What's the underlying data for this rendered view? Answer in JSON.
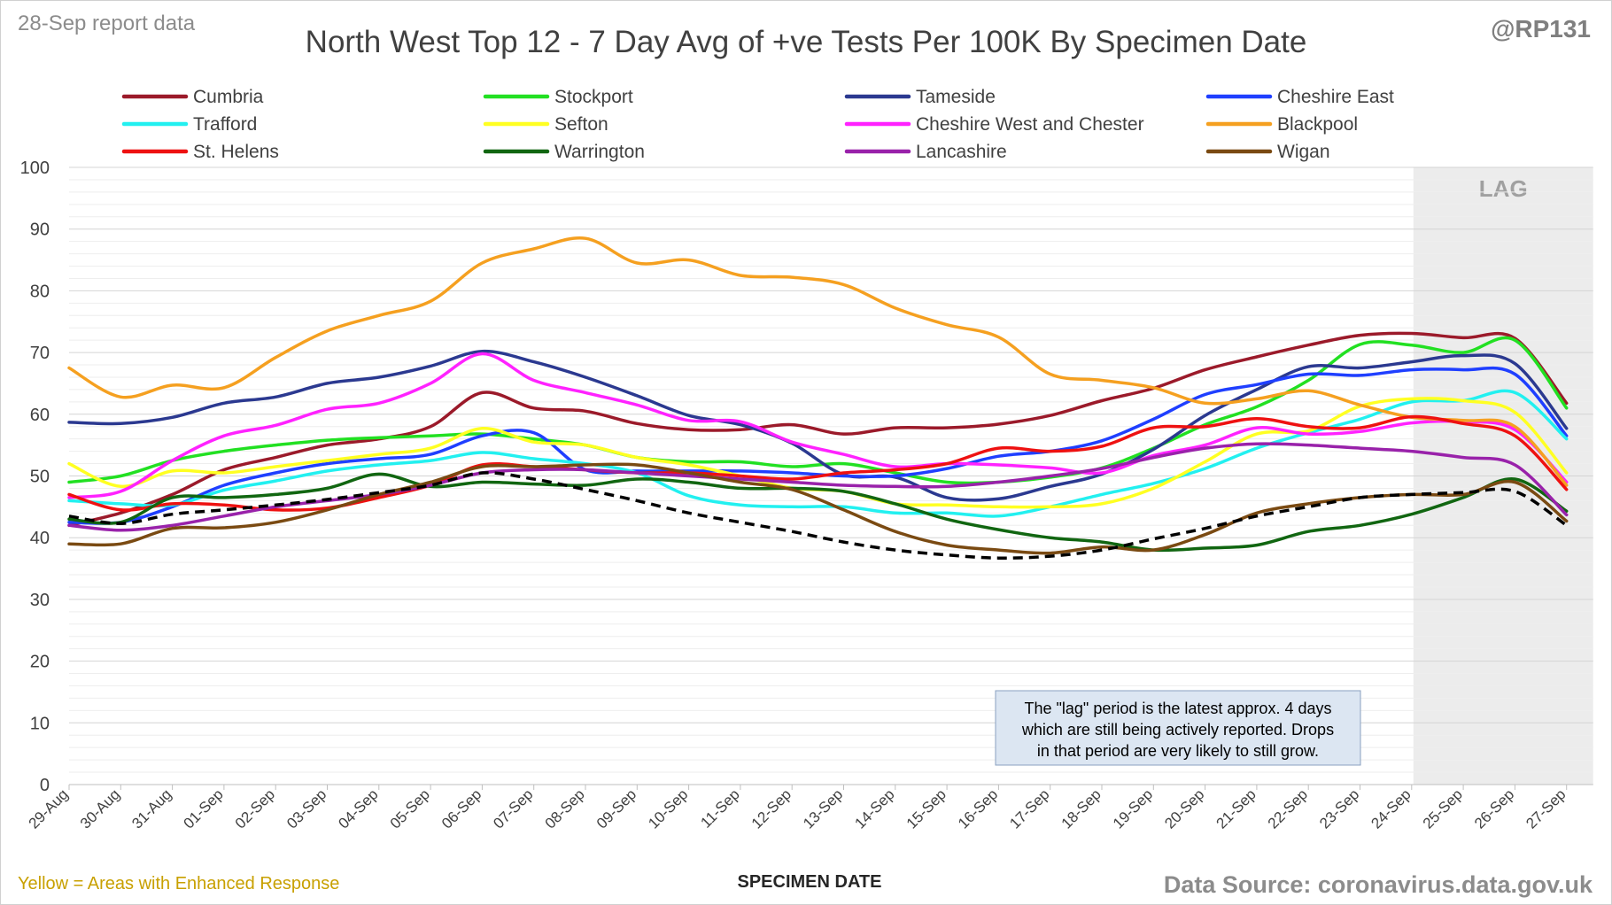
{
  "header": {
    "report_label": "28-Sep report data",
    "handle": "@RP131",
    "footer_left": "Yellow = Areas with Enhanced Response",
    "source": "Data Source: coronavirus.data.gov.uk"
  },
  "annotation": {
    "lag_label": "LAG",
    "note_lines": [
      "The \"lag\" period is the latest approx. 4 days",
      "which are still being actively reported.  Drops",
      "in that period are very likely to still grow."
    ]
  },
  "chart_data": {
    "type": "line",
    "title": "North West Top 12 - 7 Day Avg of +ve Tests Per 100K By Specimen Date",
    "xlabel": "SPECIMEN DATE",
    "ylabel": "",
    "ylim": [
      0,
      100
    ],
    "yticks": [
      0,
      10,
      20,
      30,
      40,
      50,
      60,
      70,
      80,
      90,
      100
    ],
    "grid": true,
    "legend": "top",
    "lag_region": [
      "24-Sep",
      "27-Sep"
    ],
    "categories": [
      "29-Aug",
      "30-Aug",
      "31-Aug",
      "01-Sep",
      "02-Sep",
      "03-Sep",
      "04-Sep",
      "05-Sep",
      "06-Sep",
      "07-Sep",
      "08-Sep",
      "09-Sep",
      "10-Sep",
      "11-Sep",
      "12-Sep",
      "13-Sep",
      "14-Sep",
      "15-Sep",
      "16-Sep",
      "17-Sep",
      "18-Sep",
      "19-Sep",
      "20-Sep",
      "21-Sep",
      "22-Sep",
      "23-Sep",
      "24-Sep",
      "25-Sep",
      "26-Sep",
      "27-Sep"
    ],
    "series": [
      {
        "name": "Cumbria",
        "color": "#9b1a2a",
        "values": [
          42,
          44,
          47,
          51,
          53,
          55,
          56,
          58,
          63.5,
          61,
          60.5,
          58.5,
          57.5,
          57.5,
          58.3,
          56.8,
          57.8,
          57.8,
          58.4,
          59.8,
          62.2,
          64.2,
          67.2,
          69.3,
          71.2,
          72.8,
          73.1,
          72.4,
          72.3,
          61.8
        ]
      },
      {
        "name": "Stockport",
        "color": "#22e022",
        "values": [
          49,
          50,
          52.5,
          54,
          55,
          55.8,
          56.2,
          56.5,
          56.8,
          56,
          55,
          53,
          52.3,
          52.3,
          51.5,
          52,
          50.5,
          49,
          49,
          49.8,
          51.3,
          54.5,
          58.3,
          61.2,
          65.5,
          71.3,
          71.2,
          70,
          72,
          61
        ]
      },
      {
        "name": "Tameside",
        "color": "#2b3990",
        "values": [
          58.7,
          58.5,
          59.5,
          61.8,
          62.8,
          65,
          66,
          67.8,
          70.2,
          68.5,
          66,
          63,
          59.8,
          58.3,
          55.3,
          50.2,
          49.8,
          46.5,
          46.3,
          48.3,
          50.3,
          54.3,
          59.8,
          64,
          67.7,
          67.5,
          68.5,
          69.5,
          68.2,
          57.7
        ]
      },
      {
        "name": "Cheshire East",
        "color": "#1f3fff",
        "values": [
          42.5,
          42.5,
          45,
          48.5,
          50.5,
          52,
          52.8,
          53.5,
          56.5,
          57,
          51,
          50.8,
          50.8,
          50.8,
          50.5,
          50,
          50,
          51.2,
          53.2,
          54,
          55.7,
          59.2,
          63.2,
          64.8,
          66.5,
          66.3,
          67.2,
          67.2,
          66.5,
          56.5
        ]
      },
      {
        "name": "Trafford",
        "color": "#22f0f0",
        "values": [
          46,
          45.5,
          45.3,
          47.7,
          49.2,
          50.8,
          51.8,
          52.5,
          53.8,
          52.8,
          52,
          50.5,
          46.8,
          45.3,
          45,
          45,
          44,
          44,
          43.5,
          45,
          47,
          48.8,
          51.2,
          54.5,
          57,
          59.2,
          62,
          62.2,
          63.5,
          56
        ]
      },
      {
        "name": "Sefton",
        "color": "#ffff22",
        "values": [
          52,
          48.3,
          50.8,
          50.5,
          51.5,
          52.5,
          53.5,
          54.5,
          57.7,
          55.5,
          55,
          53,
          51.8,
          50,
          48,
          47.5,
          45.5,
          45.3,
          45,
          45,
          45.5,
          48,
          52.3,
          56.8,
          57.3,
          61.3,
          62.5,
          62.2,
          60.3,
          50.5
        ]
      },
      {
        "name": "Cheshire West and Chester",
        "color": "#ff22ff",
        "values": [
          46.5,
          47.5,
          52.5,
          56.5,
          58.2,
          60.8,
          61.8,
          65,
          69.8,
          65.5,
          63.5,
          61.5,
          59,
          58.8,
          55.5,
          53.5,
          51.5,
          52,
          51.8,
          51.3,
          50.5,
          53.3,
          55,
          57.8,
          56.8,
          57.2,
          58.6,
          58.8,
          57.5,
          49
        ]
      },
      {
        "name": "Blackpool",
        "color": "#f5a020",
        "values": [
          67.5,
          62.8,
          64.7,
          64.3,
          69.2,
          73.5,
          76,
          78.3,
          84.5,
          86.8,
          88.5,
          84.5,
          85,
          82.5,
          82.2,
          81,
          77.2,
          74.5,
          72.5,
          66.5,
          65.5,
          64.3,
          61.8,
          62.5,
          63.8,
          61.5,
          59.5,
          59,
          58,
          48.5
        ]
      },
      {
        "name": "St. Helens",
        "color": "#ee1111",
        "values": [
          47,
          44.5,
          45.5,
          45.3,
          44.5,
          44.8,
          46.5,
          48.5,
          51.8,
          51.5,
          51,
          50.5,
          50.5,
          50,
          49.5,
          50.5,
          51,
          52,
          54.5,
          54,
          54.8,
          57.8,
          58,
          59.3,
          58,
          57.8,
          59.6,
          58.5,
          56.5,
          47.8
        ]
      },
      {
        "name": "Warrington",
        "color": "#116611",
        "values": [
          43,
          42.5,
          46.5,
          46.5,
          47,
          48,
          50.3,
          48.3,
          49,
          48.7,
          48.5,
          49.5,
          49,
          48,
          48,
          47.5,
          45.5,
          43,
          41.3,
          40,
          39.3,
          38,
          38.3,
          38.8,
          41,
          42,
          43.8,
          46.5,
          49.5,
          44.3
        ]
      },
      {
        "name": "Lancashire",
        "color": "#9922aa",
        "values": [
          42,
          41.2,
          42,
          43.5,
          45,
          46,
          47,
          48.5,
          50.5,
          51,
          51,
          50.5,
          50,
          49.5,
          49,
          48.5,
          48.3,
          48.3,
          49,
          50,
          51.2,
          53,
          54.5,
          55.2,
          55,
          54.5,
          54,
          53,
          51.8,
          43.7
        ]
      },
      {
        "name": "Wigan",
        "color": "#7a4a12",
        "values": [
          39,
          39,
          41.5,
          41.6,
          42.5,
          44.5,
          47,
          49,
          51.5,
          51.5,
          51.8,
          51.8,
          50.5,
          49,
          47.8,
          44.5,
          41,
          38.8,
          38,
          37.5,
          38.5,
          38,
          40.5,
          44,
          45.5,
          46.5,
          47,
          47,
          49,
          42.7
        ]
      },
      {
        "name": "",
        "color": "#000000",
        "dashed": true,
        "values": [
          43.5,
          42.3,
          43.8,
          44.5,
          45.3,
          46.2,
          47.3,
          48.5,
          50.5,
          49.5,
          47.8,
          46,
          44,
          42.5,
          41,
          39.3,
          38,
          37.2,
          36.7,
          37,
          38,
          39.8,
          41.5,
          43.5,
          45,
          46.5,
          47,
          47.3,
          47.5,
          42
        ]
      }
    ]
  }
}
